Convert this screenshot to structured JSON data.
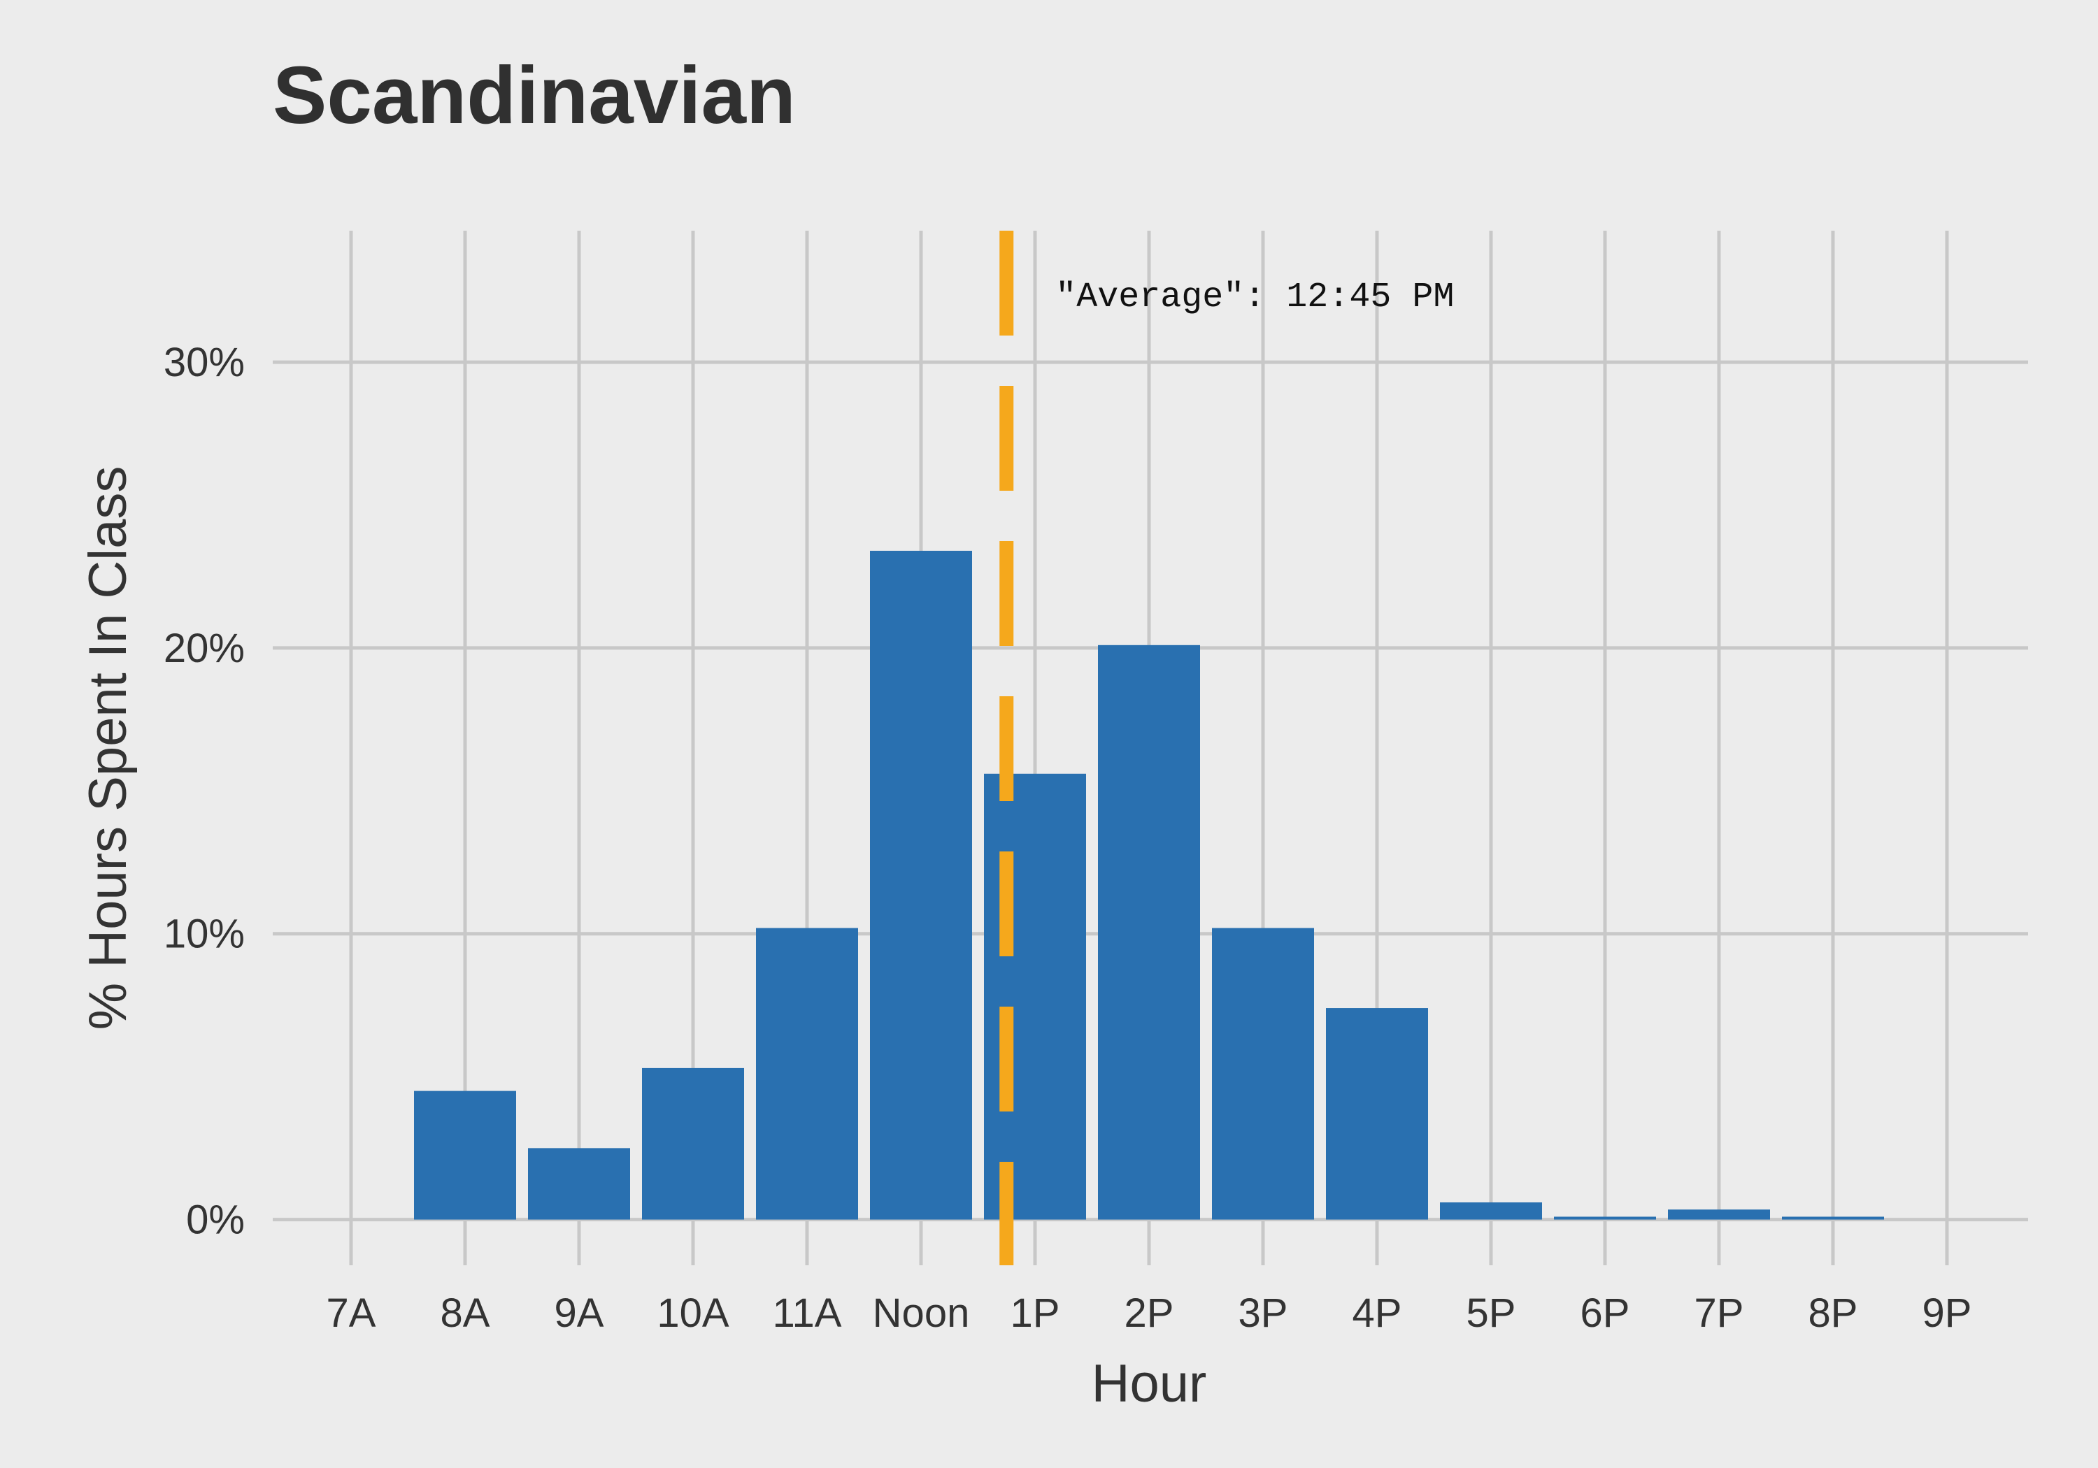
{
  "chart_data": {
    "type": "bar",
    "title": "Scandinavian",
    "xlabel": "Hour",
    "ylabel": "% Hours Spent In Class",
    "categories": [
      "7A",
      "8A",
      "9A",
      "10A",
      "11A",
      "Noon",
      "1P",
      "2P",
      "3P",
      "4P",
      "5P",
      "6P",
      "7P",
      "8P",
      "9P"
    ],
    "values": [
      0,
      4.5,
      2.5,
      5.3,
      10.2,
      23.4,
      15.6,
      20.1,
      10.2,
      7.4,
      0.6,
      0.1,
      0.35,
      0.1,
      0
    ],
    "ylim": [
      -1.6,
      34.6
    ],
    "yticks": [
      0,
      10,
      20,
      30
    ],
    "ytick_labels": [
      "0%",
      "10%",
      "20%",
      "30%"
    ],
    "average_line": {
      "x": 12.75,
      "label": "\"Average\": 12:45 PM"
    },
    "grid": true,
    "colors": {
      "bar": "#2970b0",
      "average_line": "#f5a81c",
      "grid": "#c8c8c8",
      "background": "#ececec",
      "text": "#333333"
    }
  }
}
